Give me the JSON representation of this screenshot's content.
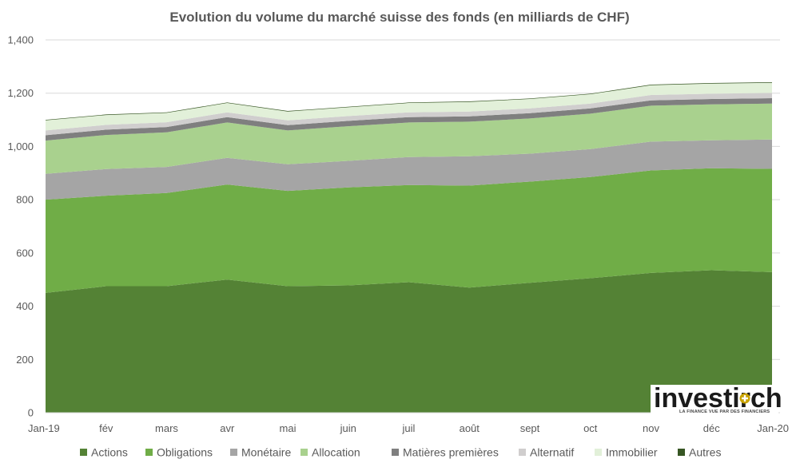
{
  "chart_data": {
    "type": "area",
    "stacked": true,
    "title": "Evolution du volume du marché suisse des fonds (en milliards de CHF)",
    "categories": [
      "Jan-19",
      "fév",
      "mars",
      "avr",
      "mai",
      "juin",
      "juil",
      "août",
      "sept",
      "oct",
      "nov",
      "déc",
      "Jan-20"
    ],
    "ylim": [
      0,
      1400
    ],
    "yticks": [
      "0",
      "200",
      "400",
      "600",
      "800",
      "1,000",
      "1,200",
      "1,400"
    ],
    "ytick_values": [
      0,
      200,
      400,
      600,
      800,
      1000,
      1200,
      1400
    ],
    "grid": true,
    "legend_position": "bottom",
    "series": [
      {
        "name": "Actions",
        "color": "#548235",
        "values": [
          450,
          475,
          475,
          500,
          475,
          478,
          490,
          470,
          488,
          505,
          525,
          535,
          528
        ]
      },
      {
        "name": "Obligations",
        "color": "#70ad47",
        "values": [
          350,
          340,
          350,
          357,
          358,
          368,
          365,
          383,
          380,
          380,
          385,
          383,
          388
        ]
      },
      {
        "name": "Monétaire",
        "color": "#a5a5a5",
        "values": [
          97,
          100,
          98,
          100,
          100,
          100,
          105,
          110,
          105,
          105,
          108,
          105,
          110
        ]
      },
      {
        "name": "Allocation",
        "color": "#a9d18e",
        "values": [
          125,
          128,
          130,
          133,
          127,
          130,
          130,
          130,
          132,
          133,
          135,
          135,
          135
        ]
      },
      {
        "name": "Matières premières",
        "color": "#7f7f7f",
        "values": [
          20,
          20,
          20,
          20,
          20,
          20,
          20,
          20,
          20,
          20,
          20,
          20,
          20
        ]
      },
      {
        "name": "Alternatif",
        "color": "#d0cece",
        "values": [
          18,
          18,
          18,
          18,
          18,
          18,
          18,
          18,
          18,
          18,
          20,
          20,
          20
        ]
      },
      {
        "name": "Immobilier",
        "color": "#e2f0d9",
        "values": [
          38,
          37,
          35,
          35,
          33,
          33,
          35,
          36,
          35,
          35,
          37,
          38,
          38
        ]
      },
      {
        "name": "Autres",
        "color": "#375623",
        "values": [
          2,
          2,
          2,
          2,
          2,
          2,
          2,
          2,
          2,
          2,
          2,
          2,
          2
        ]
      }
    ]
  },
  "logo": {
    "text_left": "investir",
    "text_right": "ch",
    "tagline": "LA FINANCE VUE PAR DES FINANCIERS"
  }
}
